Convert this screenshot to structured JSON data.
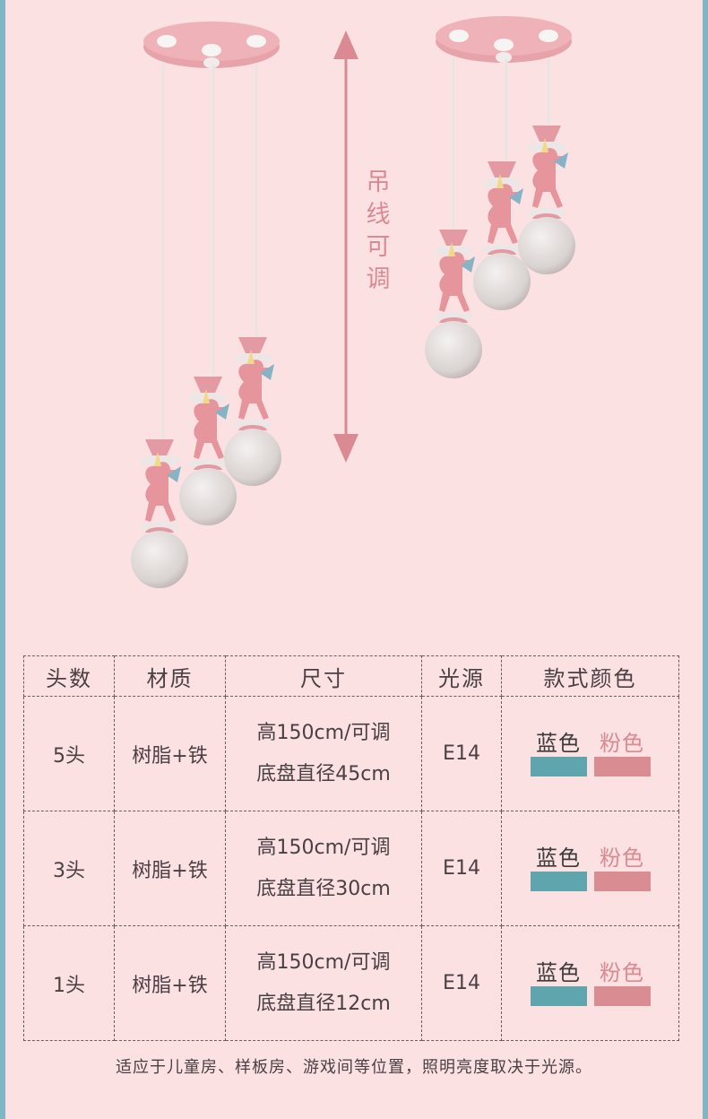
{
  "adjustable_label": [
    "吊",
    "线",
    "可",
    "调"
  ],
  "table": {
    "headers": [
      "头数",
      "材质",
      "尺寸",
      "光源",
      "款式颜色"
    ],
    "rows": [
      {
        "heads": "5头",
        "material": "树脂+铁",
        "size_line1": "高150cm/可调",
        "size_line2": "底盘直径45cm",
        "source": "E14",
        "color_blue": "蓝色",
        "color_pink": "粉色"
      },
      {
        "heads": "3头",
        "material": "树脂+铁",
        "size_line1": "高150cm/可调",
        "size_line2": "底盘直径30cm",
        "source": "E14",
        "color_blue": "蓝色",
        "color_pink": "粉色"
      },
      {
        "heads": "1头",
        "material": "树脂+铁",
        "size_line1": "高150cm/可调",
        "size_line2": "底盘直径12cm",
        "source": "E14",
        "color_blue": "蓝色",
        "color_pink": "粉色"
      }
    ]
  },
  "swatch_colors": {
    "blue": "#5fa5ad",
    "pink": "#d98c92"
  },
  "footnote": "适应于儿童房、样板房、游戏间等位置，照明亮度取决于光源。"
}
